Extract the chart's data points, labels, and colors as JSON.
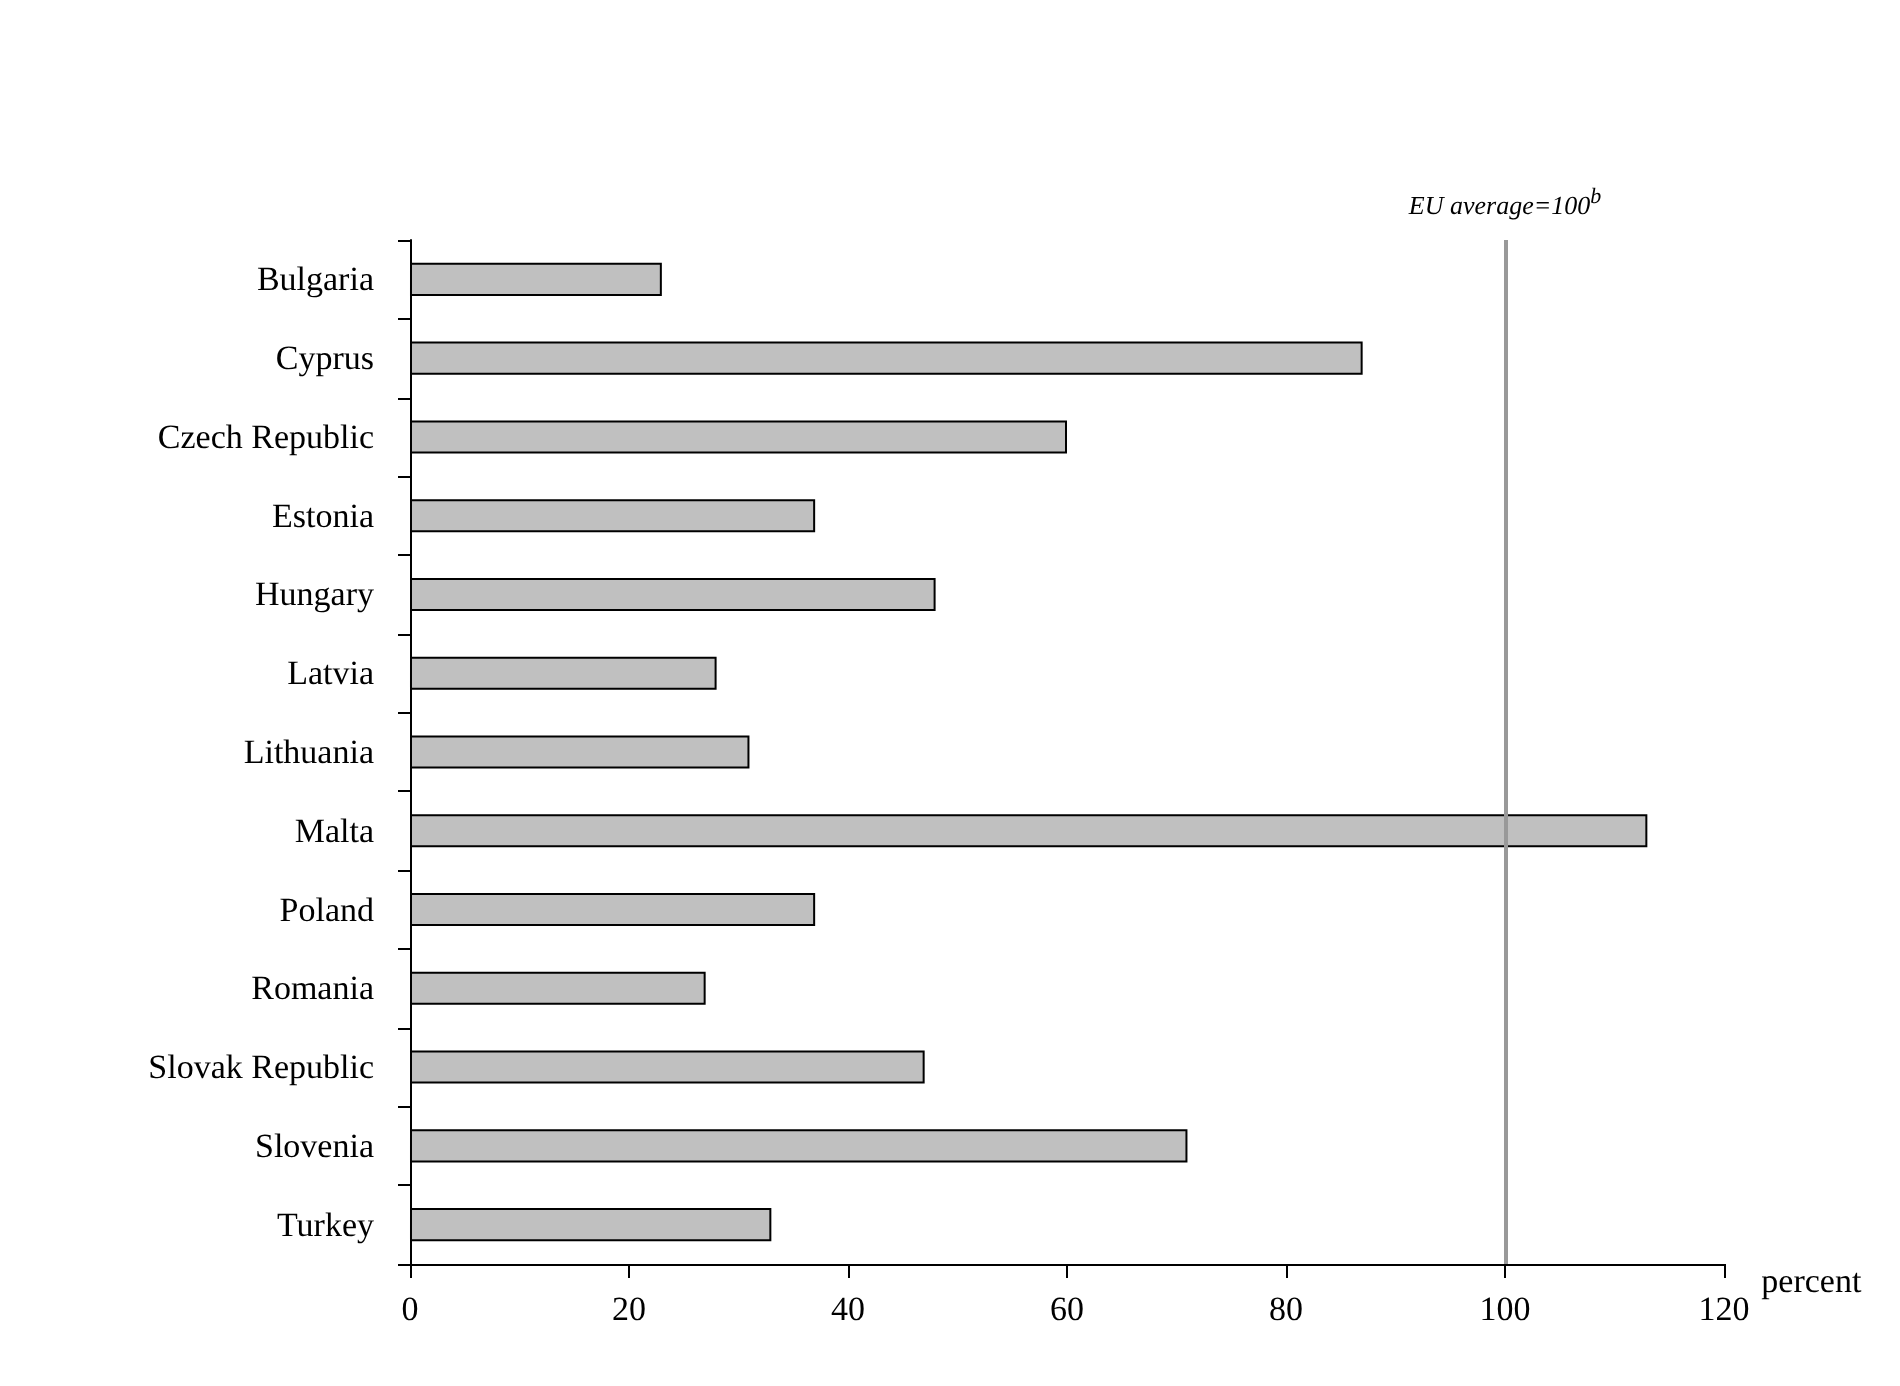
{
  "chart_data": {
    "type": "bar",
    "orientation": "horizontal",
    "xlabel": "percent",
    "categories": [
      "Bulgaria",
      "Cyprus",
      "Czech Republic",
      "Estonia",
      "Hungary",
      "Latvia",
      "Lithuania",
      "Malta",
      "Poland",
      "Romania",
      "Slovak Republic",
      "Slovenia",
      "Turkey"
    ],
    "values": [
      23,
      87,
      60,
      37,
      48,
      28,
      31,
      113,
      37,
      27,
      47,
      71,
      33
    ],
    "color": "#c0c0c0",
    "xlim": [
      0,
      120
    ],
    "xticks": [
      0,
      20,
      40,
      60,
      80,
      100,
      120
    ],
    "ref_lines": [
      {
        "axis": "x",
        "value": 100,
        "label": "EU average=100$^{b}$",
        "color": "#999999"
      }
    ]
  }
}
